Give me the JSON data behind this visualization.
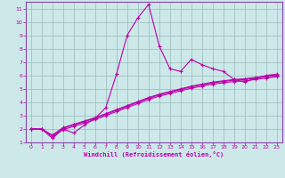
{
  "xlabel": "Windchill (Refroidissement éolien,°C)",
  "bg_color": "#cce8e8",
  "line_color": "#bb00aa",
  "grid_color": "#99bbbb",
  "spine_color": "#8844aa",
  "xlim": [
    -0.5,
    23.5
  ],
  "ylim": [
    1,
    11.5
  ],
  "xticks": [
    0,
    1,
    2,
    3,
    4,
    5,
    6,
    7,
    8,
    9,
    10,
    11,
    12,
    13,
    14,
    15,
    16,
    17,
    18,
    19,
    20,
    21,
    22,
    23
  ],
  "yticks": [
    1,
    2,
    3,
    4,
    5,
    6,
    7,
    8,
    9,
    10,
    11
  ],
  "line1_x": [
    0,
    1,
    2,
    3,
    4,
    5,
    6,
    7,
    8,
    9,
    10,
    11,
    12,
    13,
    14,
    15,
    16,
    17,
    18,
    19,
    20,
    21,
    22,
    23
  ],
  "line1_y": [
    2.0,
    2.0,
    1.3,
    2.0,
    1.7,
    2.3,
    2.8,
    3.6,
    6.1,
    9.0,
    10.3,
    11.3,
    8.2,
    6.5,
    6.3,
    7.2,
    6.8,
    6.5,
    6.3,
    5.7,
    5.5,
    5.8,
    6.0,
    6.1
  ],
  "line2_x": [
    0,
    1,
    2,
    3,
    4,
    5,
    6,
    7,
    8,
    9,
    10,
    11,
    12,
    13,
    14,
    15,
    16,
    17,
    18,
    19,
    20,
    21,
    22,
    23
  ],
  "line2_y": [
    2.0,
    2.0,
    1.5,
    2.05,
    2.3,
    2.55,
    2.8,
    3.1,
    3.4,
    3.7,
    4.0,
    4.3,
    4.55,
    4.75,
    4.95,
    5.15,
    5.3,
    5.45,
    5.55,
    5.65,
    5.7,
    5.8,
    5.9,
    6.0
  ],
  "line3_x": [
    0,
    1,
    2,
    3,
    4,
    5,
    6,
    7,
    8,
    9,
    10,
    11,
    12,
    13,
    14,
    15,
    16,
    17,
    18,
    19,
    20,
    21,
    22,
    23
  ],
  "line3_y": [
    2.0,
    2.0,
    1.55,
    2.1,
    2.35,
    2.6,
    2.85,
    3.15,
    3.45,
    3.75,
    4.05,
    4.35,
    4.6,
    4.8,
    5.0,
    5.2,
    5.35,
    5.5,
    5.6,
    5.7,
    5.75,
    5.85,
    5.95,
    6.05
  ],
  "line4_x": [
    0,
    1,
    2,
    3,
    4,
    5,
    6,
    7,
    8,
    9,
    10,
    11,
    12,
    13,
    14,
    15,
    16,
    17,
    18,
    19,
    20,
    21,
    22,
    23
  ],
  "line4_y": [
    2.0,
    2.0,
    1.45,
    1.95,
    2.2,
    2.45,
    2.7,
    3.0,
    3.3,
    3.6,
    3.9,
    4.2,
    4.45,
    4.65,
    4.85,
    5.05,
    5.2,
    5.35,
    5.45,
    5.55,
    5.6,
    5.7,
    5.8,
    5.9
  ]
}
